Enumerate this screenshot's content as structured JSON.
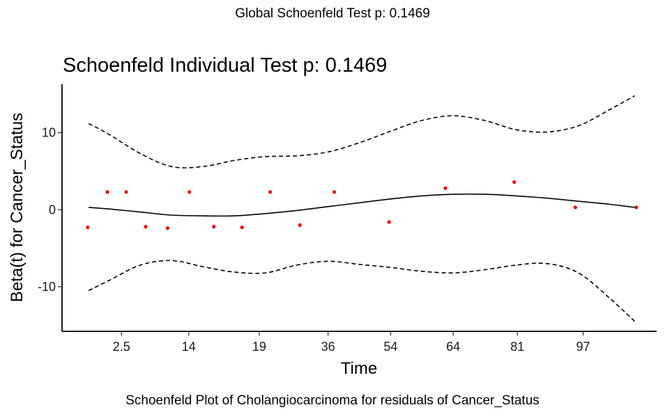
{
  "global_title": "Global Schoenfeld Test p: 0.1469",
  "caption": "Schoenfeld Plot of Cholangiocarcinoma for residuals of Cancer_Status",
  "chart_data": {
    "type": "scatter",
    "title": "Schoenfeld Individual Test p: 0.1469",
    "xlabel": "Time",
    "ylabel": "Beta(t) for Cancer_Status",
    "x_scale": "rank-transformed time",
    "xlim": [
      0,
      19
    ],
    "ylim": [
      -15.8,
      16.3
    ],
    "x_ticks": [
      {
        "pos": 1.9,
        "label": "2.5"
      },
      {
        "pos": 4.05,
        "label": "14"
      },
      {
        "pos": 6.3,
        "label": "19"
      },
      {
        "pos": 8.5,
        "label": "36"
      },
      {
        "pos": 10.5,
        "label": "54"
      },
      {
        "pos": 12.5,
        "label": "64"
      },
      {
        "pos": 14.55,
        "label": "81"
      },
      {
        "pos": 16.65,
        "label": "97"
      }
    ],
    "y_ticks": [
      -10,
      0,
      10
    ],
    "grid": false,
    "point_color": "#e8000b",
    "points": [
      [
        0.82,
        -2.3
      ],
      [
        1.45,
        2.3
      ],
      [
        2.05,
        2.3
      ],
      [
        2.67,
        -2.2
      ],
      [
        3.37,
        -2.4
      ],
      [
        4.07,
        2.3
      ],
      [
        4.85,
        -2.2
      ],
      [
        5.75,
        -2.3
      ],
      [
        6.65,
        2.3
      ],
      [
        7.6,
        -2.0
      ],
      [
        8.7,
        2.3
      ],
      [
        10.45,
        -1.6
      ],
      [
        12.25,
        2.8
      ],
      [
        14.45,
        3.6
      ],
      [
        16.4,
        0.3
      ],
      [
        18.35,
        0.3
      ]
    ],
    "series": [
      {
        "role": "fit",
        "style": "solid",
        "x": [
          0.85,
          1.5,
          2.5,
          3.5,
          4.5,
          5.5,
          6.5,
          7.5,
          8.5,
          9.5,
          10.5,
          11.5,
          12.5,
          13.5,
          14.5,
          15.5,
          16.5,
          17.5,
          18.3
        ],
        "y": [
          0.3,
          0.1,
          -0.3,
          -0.7,
          -0.8,
          -0.8,
          -0.5,
          -0.1,
          0.4,
          0.9,
          1.4,
          1.8,
          2.0,
          2.0,
          1.8,
          1.5,
          1.1,
          0.7,
          0.3
        ]
      },
      {
        "role": "upper",
        "style": "dashed",
        "x": [
          0.85,
          1.5,
          2.5,
          3.5,
          4.5,
          5.5,
          6.5,
          7.5,
          8.5,
          9.5,
          10.5,
          11.5,
          12.5,
          13.5,
          14.5,
          15.5,
          16.5,
          17.5,
          18.3
        ],
        "y": [
          11.2,
          9.8,
          7.3,
          5.6,
          5.6,
          6.4,
          6.9,
          7.0,
          7.5,
          8.7,
          10.2,
          11.6,
          12.2,
          11.6,
          10.4,
          10.1,
          10.9,
          13.0,
          14.8
        ]
      },
      {
        "role": "lower",
        "style": "dashed",
        "x": [
          0.85,
          1.5,
          2.5,
          3.5,
          4.5,
          5.5,
          6.5,
          7.5,
          8.5,
          9.5,
          10.5,
          11.5,
          12.5,
          13.5,
          14.5,
          15.5,
          16.5,
          17.5,
          18.3
        ],
        "y": [
          -10.5,
          -9.2,
          -7.2,
          -6.6,
          -7.4,
          -8.1,
          -8.2,
          -7.2,
          -6.7,
          -7.1,
          -7.5,
          -8.0,
          -8.2,
          -7.8,
          -7.2,
          -7.0,
          -8.2,
          -11.5,
          -14.5
        ]
      }
    ]
  }
}
